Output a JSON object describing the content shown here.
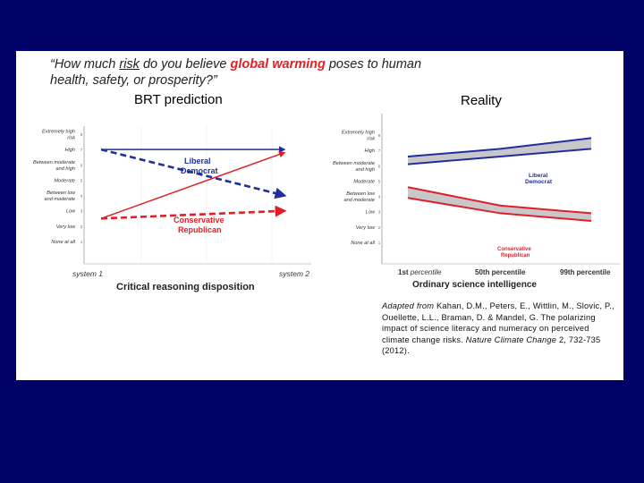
{
  "colors": {
    "background": "#000066",
    "card": "#ffffff",
    "red": "#e21f26",
    "blue": "#1f2f9c",
    "band_fill": "#c8c8cc"
  },
  "question": {
    "p1": "“How much ",
    "p2": "risk",
    "p3": " do you believe ",
    "p4": "global warming",
    "p5": " poses to human",
    "line2": "health, safety, or prosperity?”"
  },
  "headings": {
    "left": "BRT prediction",
    "right": "Reality"
  },
  "citation": {
    "prefix": "Adapted from",
    "text": " Kahan, D.M., Peters, E., Wittlin, M., Slovic, P., Ouellette, L.L., Braman, D. & Mandel, G. The polarizing impact of science literacy and numeracy on perceived climate change risks. ",
    "journal": "Nature Climate Change",
    "tail": " 2, 732-735 (2012)."
  },
  "chart_data": [
    {
      "type": "line",
      "title": "BRT prediction",
      "xlabel": "Critical reasoning disposition",
      "x_ticks": [
        "system 1",
        "system 2"
      ],
      "y_ticks": [
        "Extremely high risk",
        "High",
        "Between moderate and high",
        "Moderate",
        "Between low and moderate",
        "Low",
        "Very low",
        "None at all"
      ],
      "y_tick_nums": [
        "8",
        "7",
        "6",
        "5",
        "4",
        "3",
        "2",
        "1"
      ],
      "x": [
        0,
        1
      ],
      "ylim": [
        1,
        8
      ],
      "series": [
        {
          "name": "Liberal Democrat",
          "values": [
            7,
            7
          ],
          "style": "solid",
          "color": "#1f2f9c"
        },
        {
          "name": "Liberal Democrat (BRT)",
          "values": [
            7,
            4
          ],
          "style": "dashed",
          "color": "#1f2f9c"
        },
        {
          "name": "Conservative Republican",
          "values": [
            2.5,
            6.8
          ],
          "style": "solid",
          "color": "#e21f26"
        },
        {
          "name": "Conservative Republican (BRT)",
          "values": [
            2.5,
            3
          ],
          "style": "dashed",
          "color": "#e21f26"
        }
      ],
      "labels": {
        "lib_line1": "Liberal",
        "lib_line2": "Democrat",
        "con_line1": "Conservative",
        "con_line2": "Republican"
      }
    },
    {
      "type": "area",
      "title": "Reality",
      "xlabel": "Ordinary science intelligence",
      "x_ticks": [
        "1st percentile",
        "50th percentile",
        "99th percentile"
      ],
      "y_ticks": [
        "Extremely high risk",
        "High",
        "Between moderate and high",
        "Moderate",
        "Between low and moderate",
        "Low",
        "Very low",
        "None at all"
      ],
      "y_tick_nums": [
        "8",
        "7",
        "6",
        "5",
        "4",
        "3",
        "2",
        "1"
      ],
      "x": [
        0,
        50,
        99
      ],
      "ylim": [
        1,
        8
      ],
      "series": [
        {
          "name": "Liberal Democrat",
          "lower": [
            6.1,
            6.6,
            7.1
          ],
          "upper": [
            6.6,
            7.1,
            7.8
          ],
          "color": "#1f2f9c"
        },
        {
          "name": "Conservative Republican",
          "lower": [
            3.9,
            2.9,
            2.4
          ],
          "upper": [
            4.6,
            3.4,
            2.9
          ],
          "color": "#e21f26"
        }
      ],
      "labels": {
        "lib_line1": "Liberal",
        "lib_line2": "Democrat",
        "con_line1": "Conservative",
        "con_line2": "Republican"
      }
    }
  ]
}
